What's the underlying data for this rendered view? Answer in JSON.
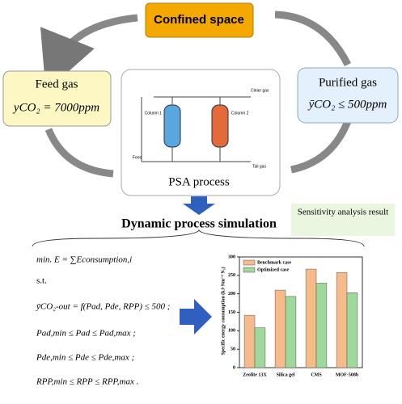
{
  "top": {
    "label": "Confined space"
  },
  "feed": {
    "label": "Feed gas",
    "formula": "yCO₂ = 7000ppm"
  },
  "purified": {
    "label": "Purified gas",
    "formula": "ȳCO₂ ≤ 500ppm"
  },
  "psa": {
    "label": "PSA process",
    "clean": "Clean gas",
    "column1": "Column 1",
    "column2": "Column 2",
    "feed": "Feed",
    "tail": "Tail gas"
  },
  "simulation": {
    "title": "Dynamic process simulation",
    "sensitivity": "Sensitivity analysis result"
  },
  "model": {
    "objective": "min.  E = ∑Econsumption,i",
    "st": "s.t.",
    "constraints": [
      "ȳCO₂-out = f(Pad, Pde, RPP) ≤ 500 ;",
      "Pad,min ≤ Pad ≤ Pad,max ;",
      "Pde,min ≤ Pde ≤ Pde,max ;",
      "RPP,min ≤ RPP ≤ RPP,max ."
    ]
  },
  "chart": {
    "type": "bar",
    "y_label": "Specific energy consumption (kJ·Nm⁻³ N₂)",
    "categories": [
      "Zeolite 13X",
      "Silica gel",
      "CMS",
      "MOF-508b"
    ],
    "series": [
      {
        "name": "Benchmark case",
        "color": "#f7ba8b",
        "values": [
          142,
          210,
          267,
          258
        ]
      },
      {
        "name": "Optimized case",
        "color": "#9fd89b",
        "values": [
          108,
          193,
          229,
          203
        ]
      }
    ],
    "ylim": [
      0,
      300
    ],
    "yticks": [
      0,
      50,
      100,
      150,
      200,
      250,
      300
    ],
    "legend": "upper left"
  }
}
